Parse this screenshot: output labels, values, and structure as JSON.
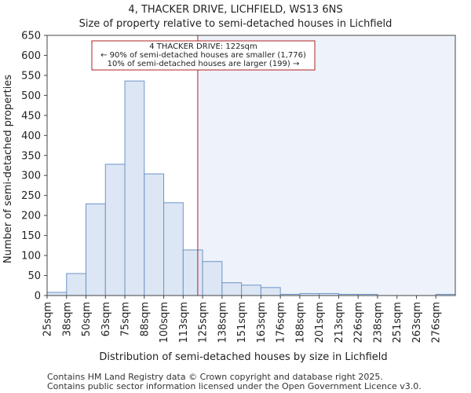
{
  "chart_data": {
    "type": "bar",
    "title": "4, THACKER DRIVE, LICHFIELD, WS13 6NS",
    "subtitle": "Size of property relative to semi-detached houses in Lichfield",
    "xlabel": "Distribution of semi-detached houses by size in Lichfield",
    "ylabel": "Number of semi-detached properties",
    "categories": [
      "25sqm",
      "38sqm",
      "50sqm",
      "63sqm",
      "75sqm",
      "88sqm",
      "100sqm",
      "113sqm",
      "125sqm",
      "138sqm",
      "151sqm",
      "163sqm",
      "176sqm",
      "188sqm",
      "201sqm",
      "213sqm",
      "226sqm",
      "238sqm",
      "251sqm",
      "263sqm",
      "276sqm"
    ],
    "values": [
      8,
      55,
      229,
      328,
      536,
      304,
      232,
      114,
      85,
      32,
      26,
      20,
      3,
      5,
      5,
      3,
      3,
      0,
      0,
      0,
      3
    ],
    "ylim": [
      0,
      650
    ],
    "yticks": [
      0,
      50,
      100,
      150,
      200,
      250,
      300,
      350,
      400,
      450,
      500,
      550,
      600,
      650
    ],
    "marker_value": 122,
    "marker_category_index": 7.75,
    "annotation": {
      "line1": "4 THACKER DRIVE: 122sqm",
      "line2": "← 90% of semi-detached houses are smaller (1,776)",
      "line3": "10% of semi-detached houses are larger (199) →"
    },
    "colors": {
      "bar_fill": "#dce6f4",
      "bar_stroke": "#6e95c8",
      "marker": "#b22222",
      "shade": "#eef2fa"
    }
  },
  "footer": {
    "line1": "Contains HM Land Registry data © Crown copyright and database right 2025.",
    "line2": "Contains public sector information licensed under the Open Government Licence v3.0."
  }
}
